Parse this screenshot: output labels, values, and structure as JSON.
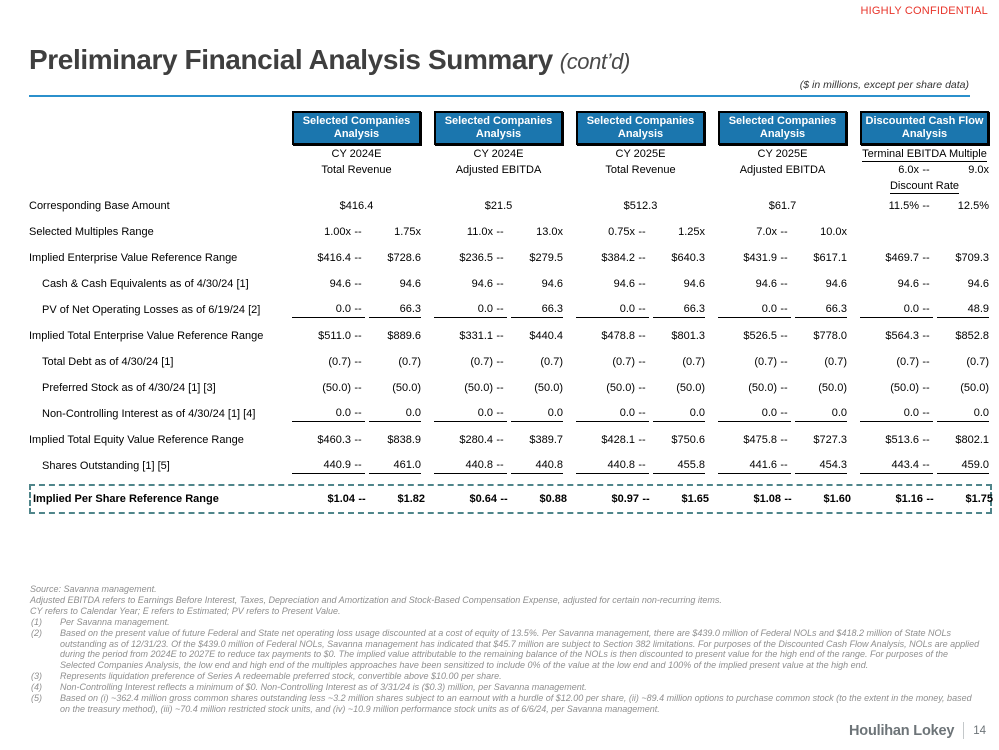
{
  "page": {
    "confidential": "HIGHLY CONFIDENTIAL",
    "title": "Preliminary Financial Analysis Summary",
    "title_suffix": "(cont’d)",
    "units_note": "($ in millions, except per share data)"
  },
  "colors": {
    "header_box_blue": "#1B76AE",
    "title_rule_blue": "#2B90CC",
    "highlight_dash_teal": "#4F858A",
    "confidential_red": "#E8352B"
  },
  "table": {
    "range_separator": "--",
    "columns": [
      {
        "box": "Selected Companies Analysis",
        "line1": "CY 2024E",
        "line2": "Total Revenue"
      },
      {
        "box": "Selected Companies Analysis",
        "line1": "CY 2024E",
        "line2": "Adjusted EBITDA"
      },
      {
        "box": "Selected Companies Analysis",
        "line1": "CY 2025E",
        "line2": "Total Revenue"
      },
      {
        "box": "Selected Companies Analysis",
        "line1": "CY 2025E",
        "line2": "Adjusted EBITDA"
      },
      {
        "box": "Discounted Cash Flow Analysis",
        "line1": "Terminal EBITDA Multiple",
        "multiple_low": "6.0x",
        "multiple_high": "9.0x",
        "line3": "Discount Rate"
      }
    ],
    "rows": [
      {
        "label": "Corresponding Base Amount",
        "indent": false,
        "underline": false,
        "bold": false,
        "boxed": false,
        "cells": [
          {
            "single": "$416.4"
          },
          {
            "single": "$21.5"
          },
          {
            "single": "$512.3"
          },
          {
            "single": "$61.7"
          },
          {
            "low": "11.5%",
            "high": "12.5%"
          }
        ]
      },
      {
        "label": "Selected Multiples Range",
        "indent": false,
        "underline": false,
        "bold": false,
        "boxed": false,
        "cells": [
          {
            "low": "1.00x",
            "high": "1.75x"
          },
          {
            "low": "11.0x",
            "high": "13.0x"
          },
          {
            "low": "0.75x",
            "high": "1.25x"
          },
          {
            "low": "7.0x",
            "high": "10.0x"
          },
          null
        ]
      },
      {
        "label": "Implied Enterprise Value Reference Range",
        "indent": false,
        "underline": false,
        "bold": false,
        "boxed": false,
        "cells": [
          {
            "low": "$416.4",
            "high": "$728.6"
          },
          {
            "low": "$236.5",
            "high": "$279.5"
          },
          {
            "low": "$384.2",
            "high": "$640.3"
          },
          {
            "low": "$431.9",
            "high": "$617.1"
          },
          {
            "low": "$469.7",
            "high": "$709.3"
          }
        ]
      },
      {
        "label": "Cash & Cash Equivalents as of 4/30/24 [1]",
        "indent": true,
        "underline": false,
        "bold": false,
        "boxed": false,
        "cells": [
          {
            "low": "94.6",
            "high": "94.6"
          },
          {
            "low": "94.6",
            "high": "94.6"
          },
          {
            "low": "94.6",
            "high": "94.6"
          },
          {
            "low": "94.6",
            "high": "94.6"
          },
          {
            "low": "94.6",
            "high": "94.6"
          }
        ]
      },
      {
        "label": "PV of Net Operating Losses as of 6/19/24 [2]",
        "indent": true,
        "underline": true,
        "bold": false,
        "boxed": false,
        "cells": [
          {
            "low": "0.0",
            "high": "66.3"
          },
          {
            "low": "0.0",
            "high": "66.3"
          },
          {
            "low": "0.0",
            "high": "66.3"
          },
          {
            "low": "0.0",
            "high": "66.3"
          },
          {
            "low": "0.0",
            "high": "48.9"
          }
        ]
      },
      {
        "label": "Implied Total Enterprise Value Reference Range",
        "indent": false,
        "underline": false,
        "bold": false,
        "boxed": false,
        "cells": [
          {
            "low": "$511.0",
            "high": "$889.6"
          },
          {
            "low": "$331.1",
            "high": "$440.4"
          },
          {
            "low": "$478.8",
            "high": "$801.3"
          },
          {
            "low": "$526.5",
            "high": "$778.0"
          },
          {
            "low": "$564.3",
            "high": "$852.8"
          }
        ]
      },
      {
        "label": "Total Debt as of 4/30/24 [1]",
        "indent": true,
        "underline": false,
        "bold": false,
        "boxed": false,
        "cells": [
          {
            "low": "(0.7)",
            "high": "(0.7)"
          },
          {
            "low": "(0.7)",
            "high": "(0.7)"
          },
          {
            "low": "(0.7)",
            "high": "(0.7)"
          },
          {
            "low": "(0.7)",
            "high": "(0.7)"
          },
          {
            "low": "(0.7)",
            "high": "(0.7)"
          }
        ]
      },
      {
        "label": "Preferred Stock as of 4/30/24 [1] [3]",
        "indent": true,
        "underline": false,
        "bold": false,
        "boxed": false,
        "cells": [
          {
            "low": "(50.0)",
            "high": "(50.0)"
          },
          {
            "low": "(50.0)",
            "high": "(50.0)"
          },
          {
            "low": "(50.0)",
            "high": "(50.0)"
          },
          {
            "low": "(50.0)",
            "high": "(50.0)"
          },
          {
            "low": "(50.0)",
            "high": "(50.0)"
          }
        ]
      },
      {
        "label": "Non-Controlling Interest as of 4/30/24 [1] [4]",
        "indent": true,
        "underline": true,
        "bold": false,
        "boxed": false,
        "cells": [
          {
            "low": "0.0",
            "high": "0.0"
          },
          {
            "low": "0.0",
            "high": "0.0"
          },
          {
            "low": "0.0",
            "high": "0.0"
          },
          {
            "low": "0.0",
            "high": "0.0"
          },
          {
            "low": "0.0",
            "high": "0.0"
          }
        ]
      },
      {
        "label": "Implied Total Equity Value Reference Range",
        "indent": false,
        "underline": false,
        "bold": false,
        "boxed": false,
        "cells": [
          {
            "low": "$460.3",
            "high": "$838.9"
          },
          {
            "low": "$280.4",
            "high": "$389.7"
          },
          {
            "low": "$428.1",
            "high": "$750.6"
          },
          {
            "low": "$475.8",
            "high": "$727.3"
          },
          {
            "low": "$513.6",
            "high": "$802.1"
          }
        ]
      },
      {
        "label": "Shares Outstanding [1] [5]",
        "indent": true,
        "underline": true,
        "bold": false,
        "boxed": false,
        "cells": [
          {
            "low": "440.9",
            "high": "461.0"
          },
          {
            "low": "440.8",
            "high": "440.8"
          },
          {
            "low": "440.8",
            "high": "455.8"
          },
          {
            "low": "441.6",
            "high": "454.3"
          },
          {
            "low": "443.4",
            "high": "459.0"
          }
        ]
      },
      {
        "label": "Implied Per Share Reference Range",
        "indent": false,
        "underline": false,
        "bold": true,
        "boxed": true,
        "cells": [
          {
            "low": "$1.04",
            "high": "$1.82"
          },
          {
            "low": "$0.64",
            "high": "$0.88"
          },
          {
            "low": "$0.97",
            "high": "$1.65"
          },
          {
            "low": "$1.08",
            "high": "$1.60"
          },
          {
            "low": "$1.16",
            "high": "$1.75"
          }
        ]
      }
    ]
  },
  "footnotes": {
    "pre": [
      "Source: Savanna management.",
      "Adjusted EBITDA refers to Earnings Before Interest, Taxes, Depreciation and Amortization and Stock-Based Compensation Expense, adjusted for certain non-recurring items.",
      "CY refers to Calendar Year; E refers to Estimated; PV refers to Present Value."
    ],
    "items": [
      {
        "num": "(1)",
        "text": "Per Savanna management."
      },
      {
        "num": "(2)",
        "text": "Based on the present value of future Federal and State net operating loss usage discounted at a cost of equity of 13.5%. Per Savanna management, there are $439.0 million of Federal NOLs and $418.2 million of State NOLs outstanding as of 12/31/23. Of the $439.0 million of Federal NOLs, Savanna management has indicated that $45.7 million are subject to Section 382 limitations. For purposes of the Discounted Cash Flow Analysis, NOLs are applied during the period from 2024E to 2027E to reduce tax payments to $0. The implied value attributable to the remaining balance of the NOLs is then discounted to present value for the high end of the range. For purposes of the Selected Companies Analysis, the low end and high end of the multiples approaches have been sensitized to include 0% of the value at the low end and 100% of the implied present value at the high end."
      },
      {
        "num": "(3)",
        "text": "Represents liquidation preference of Series A redeemable preferred stock, convertible above $10.00 per share."
      },
      {
        "num": "(4)",
        "text": "Non-Controlling Interest reflects a minimum of $0. Non-Controlling Interest as of 3/31/24 is ($0.3) million, per Savanna management."
      },
      {
        "num": "(5)",
        "text": "Based on (i) ~362.4 million gross common shares outstanding less ~3.2 million shares subject to an earnout with a hurdle of $12.00 per share, (ii) ~89.4 million options to purchase common stock (to the extent in the money, based on the treasury method), (iii) ~70.4 million restricted stock units, and (iv) ~10.9 million performance stock units as of 6/6/24, per Savanna management."
      }
    ]
  },
  "footer": {
    "brand": "Houlihan Lokey",
    "page_number": "14"
  }
}
